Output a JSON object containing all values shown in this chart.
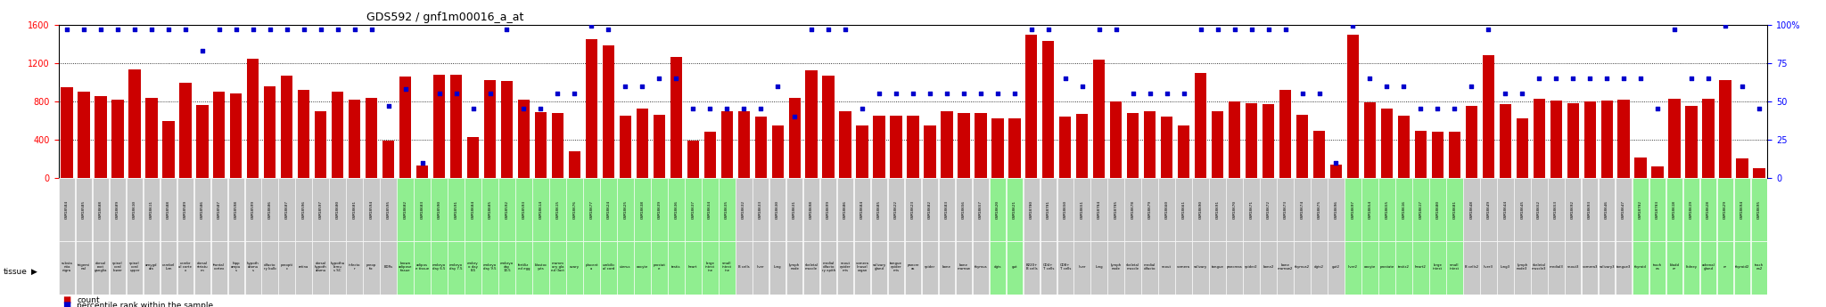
{
  "title": "GDS592 / gnf1m00016_a_at",
  "ylim_left": [
    0,
    1600
  ],
  "ylim_right": [
    0,
    100
  ],
  "yticks_left": [
    0,
    400,
    800,
    1200,
    1600
  ],
  "yticks_right": [
    0,
    25,
    50,
    75,
    100
  ],
  "bar_color": "#cc0000",
  "dot_color": "#0000cc",
  "bg_color_gray": "#c8c8c8",
  "bg_color_green": "#90ee90",
  "samples": [
    {
      "gsm": "GSM18584",
      "tissue": "substa\nntia\nnigra",
      "group": "gray",
      "count": 950,
      "pct": 97
    },
    {
      "gsm": "GSM18585",
      "tissue": "trigemi\nnal",
      "group": "gray",
      "count": 900,
      "pct": 97
    },
    {
      "gsm": "GSM18608",
      "tissue": "dorsal\nroot\nganglia",
      "group": "gray",
      "count": 850,
      "pct": 97
    },
    {
      "gsm": "GSM18609",
      "tissue": "spinal\ncord\nlower",
      "group": "gray",
      "count": 820,
      "pct": 97
    },
    {
      "gsm": "GSM18610",
      "tissue": "spinal\ncord\nupper",
      "group": "gray",
      "count": 1130,
      "pct": 97
    },
    {
      "gsm": "GSM18611",
      "tissue": "amygd\nala",
      "group": "gray",
      "count": 840,
      "pct": 97
    },
    {
      "gsm": "GSM18588",
      "tissue": "cerebel\nlum",
      "group": "gray",
      "count": 590,
      "pct": 97
    },
    {
      "gsm": "GSM18589",
      "tissue": "cerebr\nal corte\nx",
      "group": "gray",
      "count": 990,
      "pct": 97
    },
    {
      "gsm": "GSM18586",
      "tissue": "dorsal\nstriatu\nm",
      "group": "gray",
      "count": 760,
      "pct": 83
    },
    {
      "gsm": "GSM18587",
      "tissue": "frontal\ncortex",
      "group": "gray",
      "count": 900,
      "pct": 97
    },
    {
      "gsm": "GSM18598",
      "tissue": "hipp\nampu\ns",
      "group": "gray",
      "count": 880,
      "pct": 97
    },
    {
      "gsm": "GSM18599",
      "tissue": "hypoth\nalamu\ns",
      "group": "gray",
      "count": 1240,
      "pct": 97
    },
    {
      "gsm": "GSM18606",
      "tissue": "olfacto\nry bulb",
      "group": "gray",
      "count": 960,
      "pct": 97
    },
    {
      "gsm": "GSM18607",
      "tissue": "preopti\nc",
      "group": "gray",
      "count": 1070,
      "pct": 97
    },
    {
      "gsm": "GSM18596",
      "tissue": "retina",
      "group": "gray",
      "count": 920,
      "pct": 97
    },
    {
      "gsm": "GSM18597",
      "tissue": "dorsal\nhypoth\nalamu",
      "group": "gray",
      "count": 700,
      "pct": 97
    },
    {
      "gsm": "GSM18600",
      "tissue": "hypotha\nlamu\ns SC",
      "group": "gray",
      "count": 900,
      "pct": 97
    },
    {
      "gsm": "GSM18601",
      "tissue": "infecto\nr",
      "group": "gray",
      "count": 820,
      "pct": 97
    },
    {
      "gsm": "GSM18594",
      "tissue": "preop\ntic",
      "group": "gray",
      "count": 840,
      "pct": 97
    },
    {
      "gsm": "GSM18595",
      "tissue": "EDRs",
      "group": "gray",
      "count": 390,
      "pct": 47
    },
    {
      "gsm": "GSM18602",
      "tissue": "brown\nadipose\ntissue",
      "group": "green",
      "count": 1060,
      "pct": 58
    },
    {
      "gsm": "GSM18603",
      "tissue": "adipos\ne tissue",
      "group": "green",
      "count": 130,
      "pct": 10
    },
    {
      "gsm": "GSM18590",
      "tissue": "embryo\nday 6.5",
      "group": "green",
      "count": 1080,
      "pct": 55
    },
    {
      "gsm": "GSM18591",
      "tissue": "embryo\nday 7.5",
      "group": "green",
      "count": 1080,
      "pct": 55
    },
    {
      "gsm": "GSM18604",
      "tissue": "embry\no day\n8.5",
      "group": "green",
      "count": 430,
      "pct": 45
    },
    {
      "gsm": "GSM18605",
      "tissue": "embryo\nday 9.5",
      "group": "green",
      "count": 1020,
      "pct": 55
    },
    {
      "gsm": "GSM18592",
      "tissue": "embryo\nday\n10.5",
      "group": "green",
      "count": 1010,
      "pct": 97
    },
    {
      "gsm": "GSM18593",
      "tissue": "fertiliz\ned egg",
      "group": "green",
      "count": 820,
      "pct": 45
    },
    {
      "gsm": "GSM18614",
      "tissue": "blastoc\nysts",
      "group": "green",
      "count": 690,
      "pct": 45
    },
    {
      "gsm": "GSM18615",
      "tissue": "mamm\nary gla\nnd (lact",
      "group": "green",
      "count": 680,
      "pct": 55
    },
    {
      "gsm": "GSM18676",
      "tissue": "ovary",
      "group": "green",
      "count": 280,
      "pct": 55
    },
    {
      "gsm": "GSM18677",
      "tissue": "placent\na",
      "group": "green",
      "count": 1450,
      "pct": 99
    },
    {
      "gsm": "GSM18624",
      "tissue": "umbilic\nal cord",
      "group": "green",
      "count": 1380,
      "pct": 97
    },
    {
      "gsm": "GSM18625",
      "tissue": "uterus",
      "group": "green",
      "count": 650,
      "pct": 60
    },
    {
      "gsm": "GSM18638",
      "tissue": "oocyte",
      "group": "green",
      "count": 720,
      "pct": 60
    },
    {
      "gsm": "GSM18639",
      "tissue": "prostat\ne",
      "group": "green",
      "count": 660,
      "pct": 65
    },
    {
      "gsm": "GSM18636",
      "tissue": "testis",
      "group": "green",
      "count": 1260,
      "pct": 65
    },
    {
      "gsm": "GSM18637",
      "tissue": "heart",
      "group": "green",
      "count": 390,
      "pct": 45
    },
    {
      "gsm": "GSM18634",
      "tissue": "large\nintest\nine",
      "group": "green",
      "count": 480,
      "pct": 45
    },
    {
      "gsm": "GSM18635",
      "tissue": "small\nintest\nine",
      "group": "green",
      "count": 700,
      "pct": 45
    },
    {
      "gsm": "GSM18632",
      "tissue": "B cells",
      "group": "gray",
      "count": 700,
      "pct": 45
    },
    {
      "gsm": "GSM18633",
      "tissue": "liver",
      "group": "gray",
      "count": 640,
      "pct": 45
    },
    {
      "gsm": "GSM18630",
      "tissue": "lung",
      "group": "gray",
      "count": 550,
      "pct": 60
    },
    {
      "gsm": "GSM18631",
      "tissue": "lymph\nnode",
      "group": "gray",
      "count": 840,
      "pct": 40
    },
    {
      "gsm": "GSM18698",
      "tissue": "skeletal\nmuscle",
      "group": "gray",
      "count": 1120,
      "pct": 97
    },
    {
      "gsm": "GSM18699",
      "tissue": "medial\nolfacto\nry epith",
      "group": "gray",
      "count": 1070,
      "pct": 97
    },
    {
      "gsm": "GSM18686",
      "tissue": "snout\nepider\nmis",
      "group": "gray",
      "count": 700,
      "pct": 97
    },
    {
      "gsm": "GSM18684",
      "tissue": "vomera\nlinasal\norgan",
      "group": "gray",
      "count": 550,
      "pct": 45
    },
    {
      "gsm": "GSM18685",
      "tissue": "salivary\ngland",
      "group": "gray",
      "count": 650,
      "pct": 55
    },
    {
      "gsm": "GSM18622",
      "tissue": "tongue\nepider\nmis",
      "group": "gray",
      "count": 650,
      "pct": 55
    },
    {
      "gsm": "GSM18623",
      "tissue": "pancre\nas",
      "group": "gray",
      "count": 650,
      "pct": 55
    },
    {
      "gsm": "GSM18682",
      "tissue": "spider",
      "group": "gray",
      "count": 550,
      "pct": 55
    },
    {
      "gsm": "GSM18683",
      "tissue": "bone",
      "group": "gray",
      "count": 700,
      "pct": 55
    },
    {
      "gsm": "GSM18656",
      "tissue": "bone\nmarrow",
      "group": "gray",
      "count": 680,
      "pct": 55
    },
    {
      "gsm": "GSM18657",
      "tissue": "thymus",
      "group": "gray",
      "count": 680,
      "pct": 55
    },
    {
      "gsm": "GSM18620",
      "tissue": "dgts",
      "group": "green",
      "count": 620,
      "pct": 55
    },
    {
      "gsm": "GSM18621",
      "tissue": "gut",
      "group": "green",
      "count": 620,
      "pct": 55
    },
    {
      "gsm": "GSM18700",
      "tissue": "B220+\nB cells",
      "group": "gray",
      "count": 1490,
      "pct": 97
    },
    {
      "gsm": "GSM18701",
      "tissue": "CD4+\nT cells",
      "group": "gray",
      "count": 1430,
      "pct": 97
    },
    {
      "gsm": "GSM18650",
      "tissue": "CD8+\nT cells",
      "group": "gray",
      "count": 640,
      "pct": 65
    },
    {
      "gsm": "GSM18651",
      "tissue": "liver",
      "group": "gray",
      "count": 670,
      "pct": 60
    },
    {
      "gsm": "GSM18704",
      "tissue": "lung",
      "group": "gray",
      "count": 1230,
      "pct": 97
    },
    {
      "gsm": "GSM18705",
      "tissue": "lymph\nnode",
      "group": "gray",
      "count": 800,
      "pct": 97
    },
    {
      "gsm": "GSM18678",
      "tissue": "skeletal\nmuscle",
      "group": "gray",
      "count": 680,
      "pct": 55
    },
    {
      "gsm": "GSM18679",
      "tissue": "medial\nolfacto",
      "group": "gray",
      "count": 700,
      "pct": 55
    },
    {
      "gsm": "GSM18660",
      "tissue": "snout",
      "group": "gray",
      "count": 640,
      "pct": 55
    },
    {
      "gsm": "GSM18661",
      "tissue": "vomera",
      "group": "gray",
      "count": 550,
      "pct": 55
    },
    {
      "gsm": "GSM18690",
      "tissue": "salivary",
      "group": "gray",
      "count": 1100,
      "pct": 97
    },
    {
      "gsm": "GSM18691",
      "tissue": "tongue",
      "group": "gray",
      "count": 700,
      "pct": 97
    },
    {
      "gsm": "GSM18670",
      "tissue": "pancreas",
      "group": "gray",
      "count": 800,
      "pct": 97
    },
    {
      "gsm": "GSM18671",
      "tissue": "spider2",
      "group": "gray",
      "count": 780,
      "pct": 97
    },
    {
      "gsm": "GSM18672",
      "tissue": "bone2",
      "group": "gray",
      "count": 770,
      "pct": 97
    },
    {
      "gsm": "GSM18673",
      "tissue": "bone\nmarrow2",
      "group": "gray",
      "count": 920,
      "pct": 97
    },
    {
      "gsm": "GSM18674",
      "tissue": "thymus2",
      "group": "gray",
      "count": 660,
      "pct": 55
    },
    {
      "gsm": "GSM18675",
      "tissue": "dgts2",
      "group": "gray",
      "count": 490,
      "pct": 55
    },
    {
      "gsm": "GSM18696",
      "tissue": "gut2",
      "group": "gray",
      "count": 140,
      "pct": 10
    },
    {
      "gsm": "GSM18697",
      "tissue": "liver2",
      "group": "green",
      "count": 1490,
      "pct": 99
    },
    {
      "gsm": "GSM18654",
      "tissue": "oocyte",
      "group": "green",
      "count": 790,
      "pct": 65
    },
    {
      "gsm": "GSM18655",
      "tissue": "prostate",
      "group": "green",
      "count": 720,
      "pct": 60
    },
    {
      "gsm": "GSM18616",
      "tissue": "testis2",
      "group": "green",
      "count": 650,
      "pct": 60
    },
    {
      "gsm": "GSM18617",
      "tissue": "heart2",
      "group": "green",
      "count": 490,
      "pct": 45
    },
    {
      "gsm": "GSM18680",
      "tissue": "large\nintest",
      "group": "green",
      "count": 480,
      "pct": 45
    },
    {
      "gsm": "GSM18681",
      "tissue": "small\nintest",
      "group": "green",
      "count": 480,
      "pct": 45
    },
    {
      "gsm": "GSM18648",
      "tissue": "B cells2",
      "group": "gray",
      "count": 750,
      "pct": 60
    },
    {
      "gsm": "GSM18649",
      "tissue": "liver3",
      "group": "gray",
      "count": 1280,
      "pct": 97
    },
    {
      "gsm": "GSM18644",
      "tissue": "lung3",
      "group": "gray",
      "count": 770,
      "pct": 55
    },
    {
      "gsm": "GSM18645",
      "tissue": "lymph\nnode3",
      "group": "gray",
      "count": 620,
      "pct": 55
    },
    {
      "gsm": "GSM18652",
      "tissue": "skeletal\nmuscle3",
      "group": "gray",
      "count": 830,
      "pct": 65
    },
    {
      "gsm": "GSM18653",
      "tissue": "medial3",
      "group": "gray",
      "count": 810,
      "pct": 65
    },
    {
      "gsm": "GSM18692",
      "tissue": "snout3",
      "group": "gray",
      "count": 780,
      "pct": 65
    },
    {
      "gsm": "GSM18693",
      "tissue": "vomera3",
      "group": "gray",
      "count": 800,
      "pct": 65
    },
    {
      "gsm": "GSM18646",
      "tissue": "salivary3",
      "group": "gray",
      "count": 810,
      "pct": 65
    },
    {
      "gsm": "GSM18647",
      "tissue": "tongue3",
      "group": "gray",
      "count": 820,
      "pct": 65
    },
    {
      "gsm": "GSM18702",
      "tissue": "thyroid",
      "group": "green",
      "count": 210,
      "pct": 65
    },
    {
      "gsm": "GSM18703",
      "tissue": "trach\nea",
      "group": "green",
      "count": 120,
      "pct": 45
    },
    {
      "gsm": "GSM18618",
      "tissue": "bladd\ner",
      "group": "green",
      "count": 830,
      "pct": 97
    },
    {
      "gsm": "GSM18619",
      "tissue": "kidney",
      "group": "green",
      "count": 750,
      "pct": 65
    },
    {
      "gsm": "GSM18628",
      "tissue": "adrenal\ngland",
      "group": "green",
      "count": 830,
      "pct": 65
    },
    {
      "gsm": "GSM18629",
      "tissue": "er",
      "group": "green",
      "count": 1020,
      "pct": 99
    },
    {
      "gsm": "GSM18694",
      "tissue": "thyroid2",
      "group": "green",
      "count": 205,
      "pct": 60
    },
    {
      "gsm": "GSM18695",
      "tissue": "trach\nea2",
      "group": "green",
      "count": 100,
      "pct": 45
    }
  ]
}
